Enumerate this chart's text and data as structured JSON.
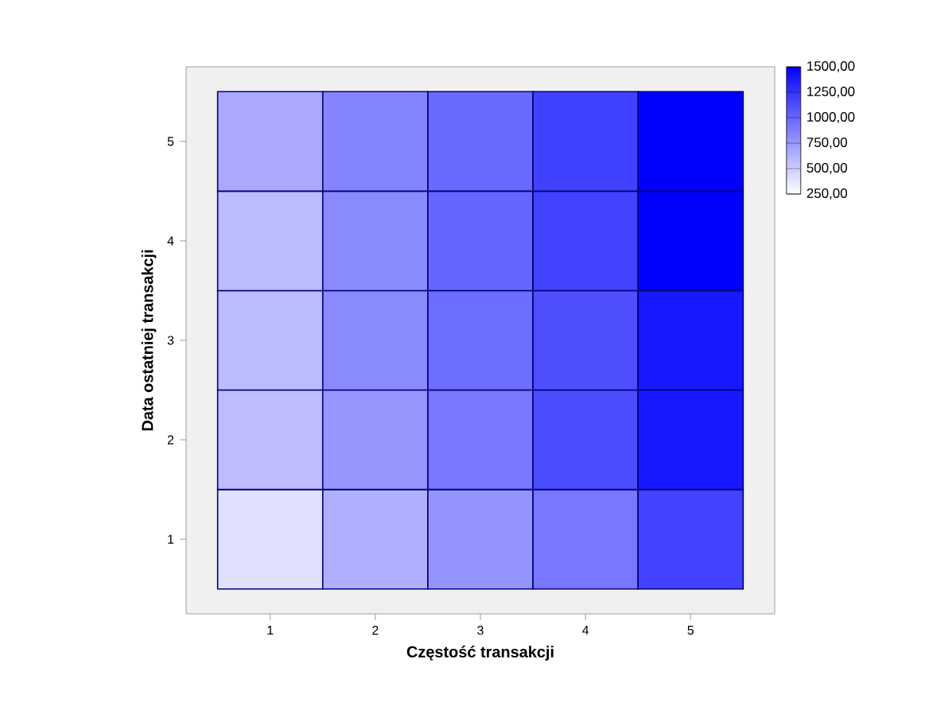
{
  "chart_data": {
    "type": "heatmap",
    "xlabel": "Częstość transakcji",
    "ylabel": "Data ostatniej transakcji",
    "categories": [
      "1",
      "2",
      "3",
      "4",
      "5"
    ],
    "y_categories": [
      "5",
      "4",
      "3",
      "2",
      "1"
    ],
    "cells": [
      [
        670,
        850,
        980,
        1180,
        1500
      ],
      [
        580,
        820,
        1000,
        1170,
        1500
      ],
      [
        580,
        820,
        960,
        1110,
        1370
      ],
      [
        570,
        760,
        910,
        1120,
        1370
      ],
      [
        400,
        640,
        770,
        910,
        1170
      ]
    ],
    "clim": [
      250,
      1500
    ],
    "cticks": [
      {
        "value": 1500,
        "label": "1500,00"
      },
      {
        "value": 1250,
        "label": "1250,00"
      },
      {
        "value": 1000,
        "label": "1000,00"
      },
      {
        "value": 750,
        "label": "750,00"
      },
      {
        "value": 500,
        "label": "500,00"
      },
      {
        "value": 250,
        "label": "250,00"
      }
    ]
  }
}
